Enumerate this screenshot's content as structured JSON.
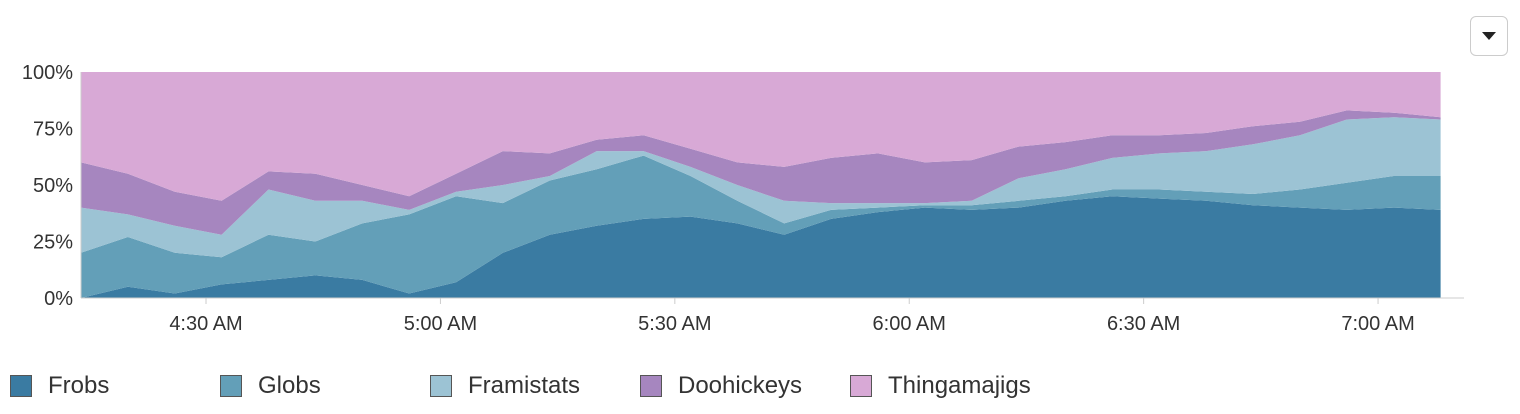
{
  "menu": {
    "icon": "caret-down-icon"
  },
  "chart_data": {
    "type": "area",
    "stacking": "percent",
    "grid": false,
    "legend_position": "bottom",
    "x_unit": "time",
    "x_range": [
      "4:14 AM",
      "7:11 AM"
    ],
    "ylim": [
      0,
      100
    ],
    "y_ticks": [
      {
        "value": 0,
        "label": "0%"
      },
      {
        "value": 25,
        "label": "25%"
      },
      {
        "value": 50,
        "label": "50%"
      },
      {
        "value": 75,
        "label": "75%"
      },
      {
        "value": 100,
        "label": "100%"
      }
    ],
    "x_ticks": [
      {
        "value": "4:30 AM",
        "label": "4:30 AM"
      },
      {
        "value": "5:00 AM",
        "label": "5:00 AM"
      },
      {
        "value": "5:30 AM",
        "label": "5:30 AM"
      },
      {
        "value": "6:00 AM",
        "label": "6:00 AM"
      },
      {
        "value": "6:30 AM",
        "label": "6:30 AM"
      },
      {
        "value": "7:00 AM",
        "label": "7:00 AM"
      }
    ],
    "x": [
      "4:14 AM",
      "4:20 AM",
      "4:26 AM",
      "4:32 AM",
      "4:38 AM",
      "4:44 AM",
      "4:50 AM",
      "4:56 AM",
      "5:02 AM",
      "5:08 AM",
      "5:14 AM",
      "5:20 AM",
      "5:26 AM",
      "5:32 AM",
      "5:38 AM",
      "5:44 AM",
      "5:50 AM",
      "5:56 AM",
      "6:02 AM",
      "6:08 AM",
      "6:14 AM",
      "6:20 AM",
      "6:26 AM",
      "6:32 AM",
      "6:38 AM",
      "6:44 AM",
      "6:50 AM",
      "6:56 AM",
      "7:02 AM",
      "7:08 AM"
    ],
    "series": [
      {
        "name": "Frobs",
        "color": "#3a7ba2",
        "values": [
          0,
          5,
          2,
          6,
          8,
          10,
          8,
          2,
          7,
          20,
          28,
          32,
          35,
          36,
          33,
          28,
          35,
          38,
          40,
          39,
          40,
          43,
          45,
          44,
          43,
          41,
          40,
          39,
          40,
          39
        ]
      },
      {
        "name": "Globs",
        "color": "#639fb8",
        "values": [
          20,
          22,
          18,
          12,
          20,
          15,
          25,
          35,
          38,
          22,
          24,
          25,
          28,
          18,
          10,
          5,
          4,
          2,
          1,
          2,
          3,
          2,
          3,
          4,
          4,
          5,
          8,
          12,
          14,
          15
        ]
      },
      {
        "name": "Framistats",
        "color": "#9cc3d4",
        "values": [
          20,
          10,
          12,
          10,
          20,
          18,
          10,
          2,
          2,
          8,
          2,
          8,
          2,
          4,
          7,
          10,
          3,
          2,
          1,
          2,
          10,
          12,
          14,
          16,
          18,
          22,
          24,
          28,
          26,
          25
        ]
      },
      {
        "name": "Doohickeys",
        "color": "#a686bf",
        "values": [
          20,
          18,
          15,
          15,
          8,
          12,
          7,
          6,
          8,
          15,
          10,
          5,
          7,
          8,
          10,
          15,
          20,
          22,
          18,
          18,
          14,
          12,
          10,
          8,
          8,
          8,
          6,
          4,
          2,
          1
        ]
      },
      {
        "name": "Thingamajigs",
        "color": "#d8a9d6",
        "values": [
          40,
          45,
          53,
          57,
          44,
          45,
          50,
          55,
          45,
          35,
          36,
          30,
          28,
          34,
          40,
          42,
          38,
          36,
          40,
          39,
          33,
          31,
          28,
          28,
          27,
          24,
          22,
          17,
          18,
          20
        ]
      }
    ]
  }
}
